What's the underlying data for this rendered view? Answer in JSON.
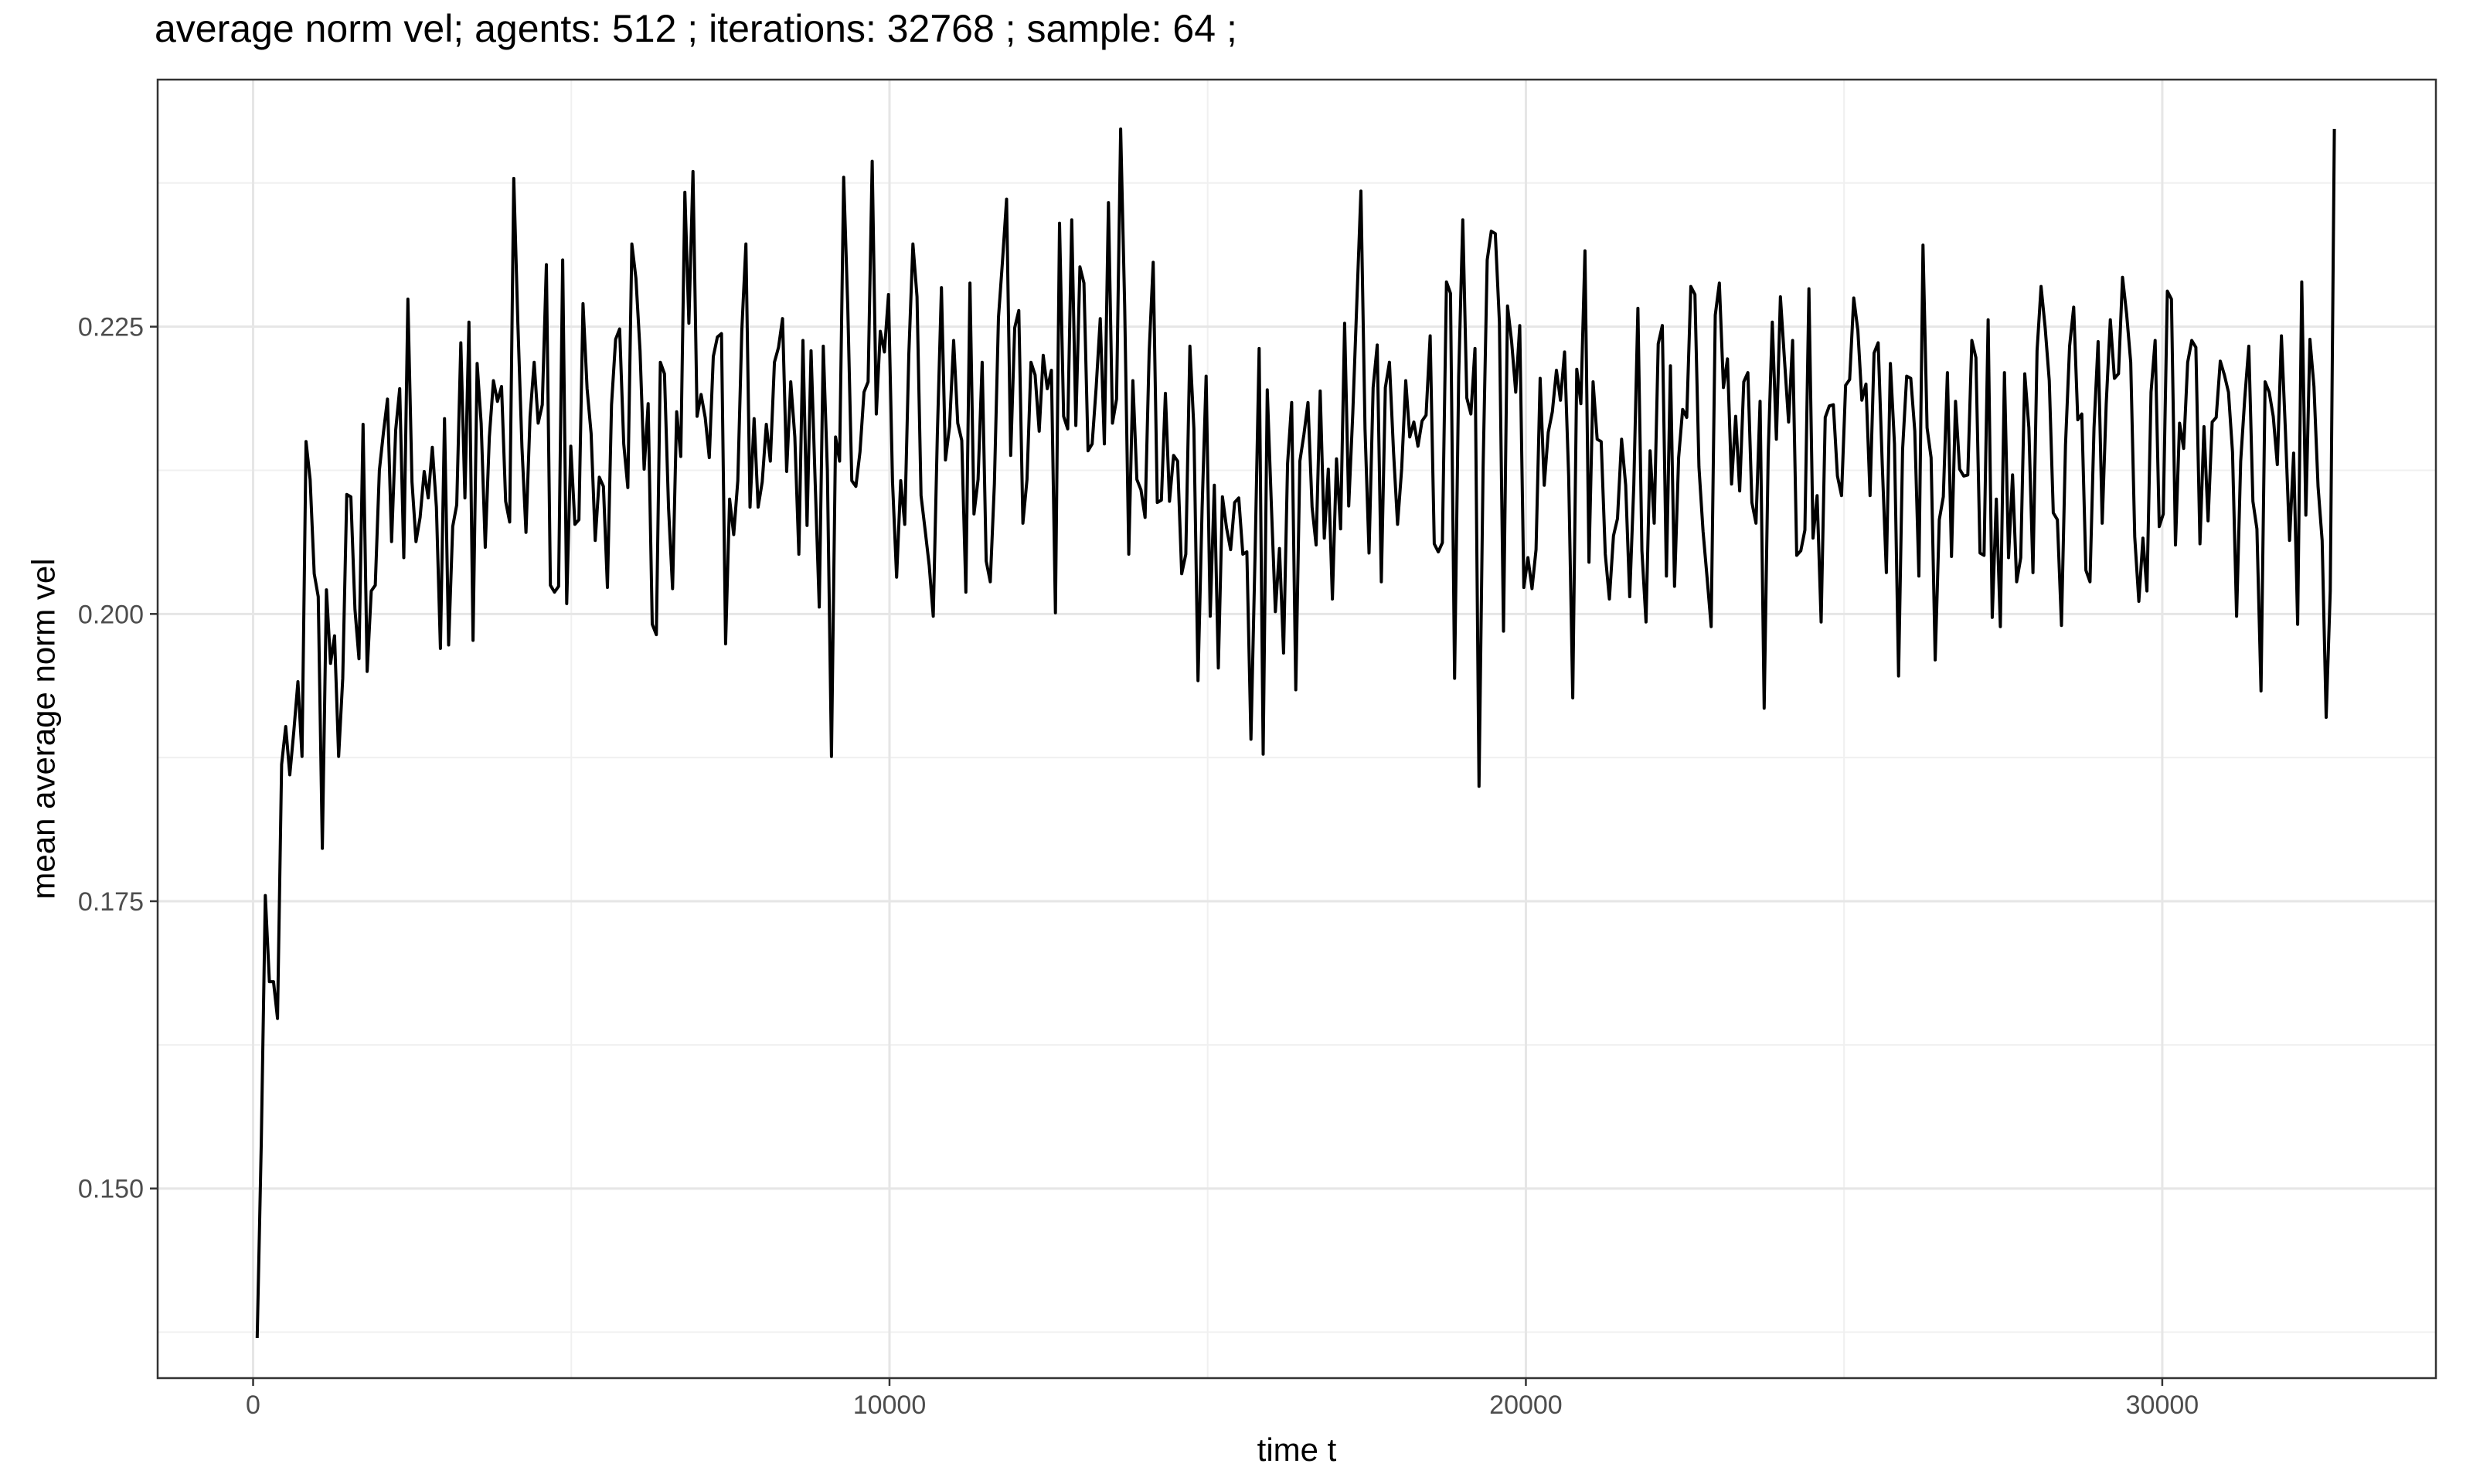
{
  "chart_data": {
    "type": "line",
    "title": "average norm vel; agents: 512 ; iterations: 32768 ; sample: 64 ;",
    "xlabel": "time t",
    "ylabel": "mean average norm vel",
    "xlim": [
      -1500,
      34300
    ],
    "ylim": [
      0.1335,
      0.2465
    ],
    "x_ticks": [
      0,
      10000,
      20000,
      30000
    ],
    "x_tick_labels": [
      "0",
      "10000",
      "20000",
      "30000"
    ],
    "y_ticks": [
      0.15,
      0.175,
      0.2,
      0.225
    ],
    "y_tick_labels": [
      "0.150",
      "0.175",
      "0.200",
      "0.225"
    ],
    "grid": true,
    "legend": "none",
    "line_color": "#000000",
    "series": [
      {
        "x0": 64,
        "dx": 64,
        "values": [
          0.137,
          0.154,
          0.1755,
          0.168,
          0.168,
          0.1648,
          0.1869,
          0.1902,
          0.186,
          0.1898,
          0.1941,
          0.1876,
          0.215,
          0.2117,
          0.2035,
          0.2015,
          0.1796,
          0.2021,
          0.1957,
          0.1981,
          0.1876,
          0.1944,
          0.2104,
          0.2102,
          0.2004,
          0.1961,
          0.2165,
          0.195,
          0.202,
          0.2025,
          0.2125,
          0.2158,
          0.2187,
          0.2063,
          0.216,
          0.2196,
          0.2049,
          0.2274,
          0.2115,
          0.2063,
          0.2084,
          0.2124,
          0.2101,
          0.2145,
          0.2093,
          0.197,
          0.217,
          0.1973,
          0.2076,
          0.2095,
          0.2236,
          0.2101,
          0.2254,
          0.1977,
          0.2218,
          0.2166,
          0.2058,
          0.2154,
          0.2203,
          0.2185,
          0.2198,
          0.2098,
          0.208,
          0.2379,
          0.2253,
          0.2145,
          0.2071,
          0.2172,
          0.2219,
          0.2166,
          0.2182,
          0.2304,
          0.2025,
          0.2019,
          0.2024,
          0.2308,
          0.2009,
          0.2146,
          0.2078,
          0.2082,
          0.227,
          0.2196,
          0.2157,
          0.2064,
          0.2119,
          0.2111,
          0.2023,
          0.2182,
          0.2239,
          0.2248,
          0.2148,
          0.211,
          0.2322,
          0.2292,
          0.2229,
          0.2126,
          0.2183,
          0.1991,
          0.1982,
          0.2219,
          0.2209,
          0.2092,
          0.2022,
          0.2176,
          0.2137,
          0.2367,
          0.2253,
          0.2385,
          0.2172,
          0.2191,
          0.2171,
          0.2136,
          0.2224,
          0.2241,
          0.2244,
          0.1974,
          0.21,
          0.2069,
          0.2116,
          0.2247,
          0.2322,
          0.2093,
          0.217,
          0.2093,
          0.2115,
          0.2165,
          0.2133,
          0.2219,
          0.2232,
          0.2257,
          0.2124,
          0.2202,
          0.2154,
          0.2052,
          0.2238,
          0.2077,
          0.2229,
          0.2115,
          0.2006,
          0.2233,
          0.2125,
          0.1876,
          0.2154,
          0.2133,
          0.238,
          0.2267,
          0.2116,
          0.2111,
          0.2141,
          0.2193,
          0.2202,
          0.2394,
          0.2174,
          0.2246,
          0.2228,
          0.2278,
          0.2115,
          0.2032,
          0.2116,
          0.2078,
          0.2226,
          0.2322,
          0.2276,
          0.2103,
          0.2073,
          0.2042,
          0.1998,
          0.2156,
          0.2284,
          0.2134,
          0.2163,
          0.2238,
          0.2166,
          0.2151,
          0.2019,
          0.2288,
          0.2087,
          0.2117,
          0.2219,
          0.2046,
          0.2028,
          0.2113,
          0.2258,
          0.2307,
          0.2361,
          0.2138,
          0.2249,
          0.2264,
          0.2079,
          0.2117,
          0.2219,
          0.2208,
          0.2159,
          0.2225,
          0.2196,
          0.2212,
          0.2001,
          0.234,
          0.2172,
          0.2161,
          0.2343,
          0.2164,
          0.2302,
          0.2288,
          0.2142,
          0.2148,
          0.2197,
          0.2257,
          0.2148,
          0.2358,
          0.2166,
          0.2187,
          0.2422,
          0.2268,
          0.2052,
          0.2203,
          0.2117,
          0.2108,
          0.2084,
          0.2228,
          0.2306,
          0.2097,
          0.2099,
          0.2192,
          0.2098,
          0.2138,
          0.2133,
          0.2035,
          0.2052,
          0.2233,
          0.2161,
          0.1942,
          0.2092,
          0.2207,
          0.1998,
          0.2112,
          0.1953,
          0.2102,
          0.2075,
          0.2056,
          0.2097,
          0.2101,
          0.2052,
          0.2054,
          0.1891,
          0.2051,
          0.2231,
          0.1878,
          0.2195,
          0.2095,
          0.2002,
          0.2057,
          0.1966,
          0.2131,
          0.2184,
          0.1934,
          0.2133,
          0.2156,
          0.2184,
          0.2093,
          0.206,
          0.2194,
          0.2066,
          0.2126,
          0.2013,
          0.2135,
          0.2074,
          0.2253,
          0.2094,
          0.2175,
          0.2271,
          0.2368,
          0.2161,
          0.2053,
          0.2197,
          0.2234,
          0.2028,
          0.2197,
          0.2219,
          0.2141,
          0.2078,
          0.2126,
          0.2203,
          0.2154,
          0.2167,
          0.2146,
          0.2168,
          0.2173,
          0.2242,
          0.2061,
          0.2054,
          0.2062,
          0.2289,
          0.2279,
          0.1944,
          0.2207,
          0.2343,
          0.2188,
          0.2174,
          0.2231,
          0.185,
          0.2127,
          0.2308,
          0.2333,
          0.2331,
          0.2254,
          0.1985,
          0.2268,
          0.2237,
          0.2193,
          0.2251,
          0.2023,
          0.2049,
          0.2022,
          0.2056,
          0.2205,
          0.2112,
          0.2158,
          0.2176,
          0.2212,
          0.2186,
          0.2228,
          0.212,
          0.1927,
          0.2213,
          0.2183,
          0.2316,
          0.2045,
          0.2202,
          0.2152,
          0.215,
          0.2052,
          0.2013,
          0.2068,
          0.2083,
          0.2152,
          0.2112,
          0.2015,
          0.2112,
          0.2266,
          0.2055,
          0.1993,
          0.2142,
          0.2079,
          0.2235,
          0.2251,
          0.2033,
          0.2216,
          0.2024,
          0.2136,
          0.2178,
          0.2171,
          0.2285,
          0.2278,
          0.2128,
          0.2072,
          0.2031,
          0.1989,
          0.226,
          0.2288,
          0.2197,
          0.2222,
          0.2113,
          0.2172,
          0.2107,
          0.2202,
          0.221,
          0.2097,
          0.2079,
          0.2185,
          0.1918,
          0.2139,
          0.2254,
          0.2152,
          0.2276,
          0.2221,
          0.2167,
          0.2238,
          0.2051,
          0.2055,
          0.2073,
          0.2283,
          0.2066,
          0.2103,
          0.1993,
          0.2171,
          0.2181,
          0.2182,
          0.212,
          0.2103,
          0.2199,
          0.2204,
          0.2275,
          0.2247,
          0.2186,
          0.22,
          0.2103,
          0.2227,
          0.2236,
          0.213,
          0.2036,
          0.2218,
          0.2148,
          0.1946,
          0.2143,
          0.2207,
          0.2205,
          0.2159,
          0.2033,
          0.2321,
          0.2162,
          0.2136,
          0.196,
          0.2082,
          0.2102,
          0.221,
          0.205,
          0.2185,
          0.2126,
          0.212,
          0.2121,
          0.2238,
          0.2223,
          0.2053,
          0.2051,
          0.2256,
          0.1997,
          0.21,
          0.1989,
          0.221,
          0.2049,
          0.2121,
          0.2028,
          0.2049,
          0.2209,
          0.2162,
          0.2036,
          0.2229,
          0.2285,
          0.2249,
          0.2203,
          0.2088,
          0.2082,
          0.199,
          0.2147,
          0.2233,
          0.2267,
          0.2169,
          0.2174,
          0.2038,
          0.2028,
          0.2162,
          0.2237,
          0.2079,
          0.2183,
          0.2256,
          0.2205,
          0.2209,
          0.2293,
          0.2261,
          0.2219,
          0.2067,
          0.2011,
          0.2066,
          0.202,
          0.2193,
          0.2238,
          0.2076,
          0.2087,
          0.2281,
          0.2274,
          0.206,
          0.2166,
          0.2144,
          0.2219,
          0.2238,
          0.2232,
          0.2061,
          0.2163,
          0.2081,
          0.2167,
          0.2171,
          0.222,
          0.2208,
          0.2193,
          0.2141,
          0.1998,
          0.2133,
          0.2187,
          0.2233,
          0.2098,
          0.2074,
          0.1933,
          0.2202,
          0.2193,
          0.2172,
          0.213,
          0.2242,
          0.2159,
          0.2064,
          0.214,
          0.1991,
          0.2289,
          0.2086,
          0.2239,
          0.2198,
          0.2111,
          0.2064,
          0.191,
          0.202,
          0.2422
        ]
      }
    ]
  }
}
